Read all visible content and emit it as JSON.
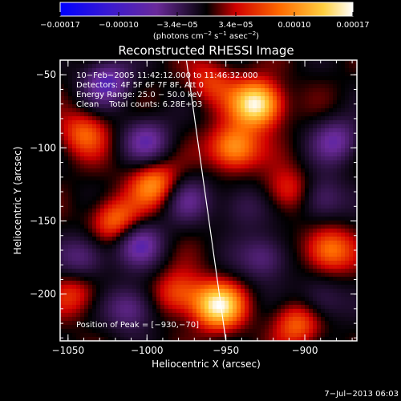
{
  "chart_data": {
    "type": "heatmap",
    "title": "Reconstructed RHESSI Image",
    "colorbar": {
      "ticks": [
        "−0.00017",
        "−0.00010",
        "−3.4e−05",
        "3.4e−05",
        "0.00010",
        "0.00017"
      ],
      "unit_base": "(photons cm",
      "unit_sup1": "−2",
      "unit_mid1": " s",
      "unit_sup2": "−1",
      "unit_mid2": " asec",
      "unit_sup3": "−2",
      "unit_end": ")",
      "range": [
        -0.00017,
        0.00017
      ],
      "colors": [
        "#0000ff",
        "#6a0dad",
        "#000000",
        "#ff0000",
        "#ff8c00",
        "#ffff80",
        "#ffffff"
      ]
    },
    "xlabel": "Heliocentric X (arcsec)",
    "ylabel": "Heliocentric Y (arcsec)",
    "xticks": [
      "−1050",
      "−1000",
      "−950",
      "−900"
    ],
    "xtick_values": [
      -1050,
      -1000,
      -950,
      -900
    ],
    "yticks": [
      "−50",
      "−100",
      "−150",
      "−200"
    ],
    "ytick_values": [
      -50,
      -100,
      -150,
      -200
    ],
    "xlim": [
      -1055,
      -867
    ],
    "ylim": [
      -232,
      -40
    ],
    "annotations": [
      "10−Feb−2005 11:42:12.000 to 11:46:32.000",
      "Detectors: 4F 5F 6F 7F 8F, Att 0",
      "Energy Range: 25.0 − 50.0 keV",
      "Clean    Total counts: 6.28E+03"
    ],
    "peak_label": "Position of Peak = [−930,−70]",
    "blobs": [
      {
        "x": -930,
        "y": -70,
        "v": 1.0
      },
      {
        "x": -945,
        "y": -100,
        "v": 0.7
      },
      {
        "x": -955,
        "y": -208,
        "v": 0.9
      },
      {
        "x": -1020,
        "y": -150,
        "v": 0.55
      },
      {
        "x": -995,
        "y": -125,
        "v": 0.6
      },
      {
        "x": -885,
        "y": -170,
        "v": 0.6
      },
      {
        "x": -905,
        "y": -220,
        "v": 0.5
      },
      {
        "x": -1040,
        "y": -90,
        "v": 0.45
      },
      {
        "x": -980,
        "y": -200,
        "v": 0.45
      },
      {
        "x": -910,
        "y": -130,
        "v": 0.4
      },
      {
        "x": -1045,
        "y": -200,
        "v": 0.35
      },
      {
        "x": -960,
        "y": -55,
        "v": 0.35
      },
      {
        "x": -1025,
        "y": -55,
        "v": -0.6
      },
      {
        "x": -1000,
        "y": -95,
        "v": -0.5
      },
      {
        "x": -1040,
        "y": -175,
        "v": -0.45
      },
      {
        "x": -1005,
        "y": -165,
        "v": -0.55
      },
      {
        "x": -975,
        "y": -135,
        "v": -0.4
      },
      {
        "x": -880,
        "y": -95,
        "v": -0.5
      },
      {
        "x": -890,
        "y": -135,
        "v": -0.45
      },
      {
        "x": -925,
        "y": -175,
        "v": -0.45
      },
      {
        "x": -1010,
        "y": -210,
        "v": -0.5
      },
      {
        "x": -890,
        "y": -205,
        "v": -0.35
      },
      {
        "x": -940,
        "y": -140,
        "v": -0.3
      }
    ],
    "limb_line": [
      [
        -975,
        -40
      ],
      [
        -950,
        -232
      ]
    ]
  },
  "footer": {
    "date": "7−Jul−2013 06:03"
  }
}
